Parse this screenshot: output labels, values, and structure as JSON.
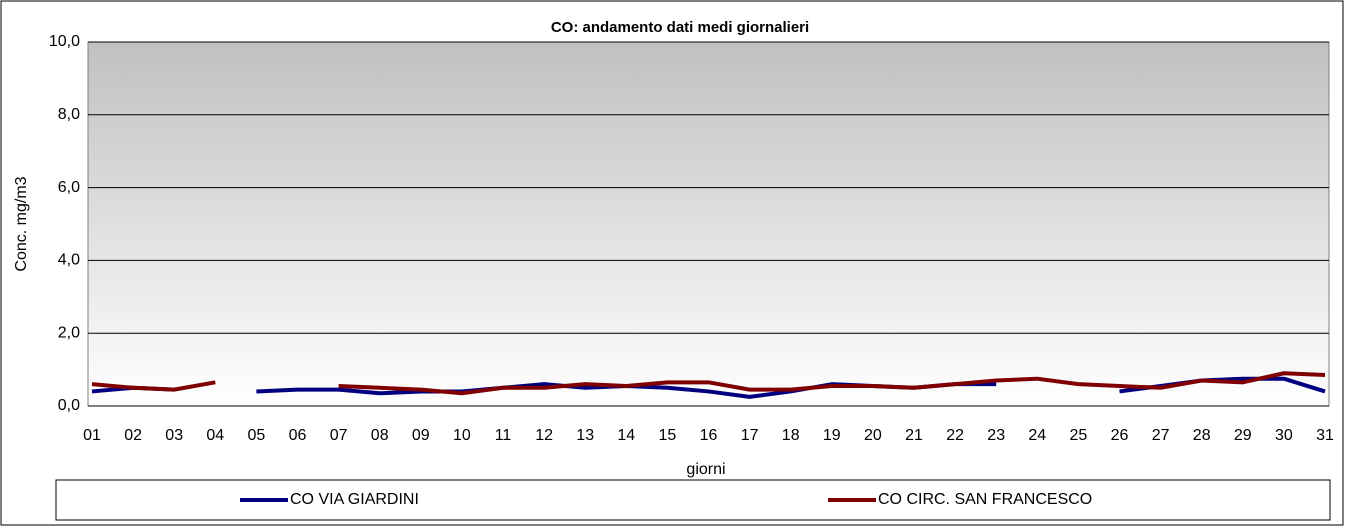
{
  "chart_data": {
    "type": "line",
    "title": "CO: andamento dati medi giornalieri",
    "xlabel": "giorni",
    "ylabel": "Conc. mg/m3",
    "categories": [
      "01",
      "02",
      "03",
      "04",
      "05",
      "06",
      "07",
      "08",
      "09",
      "10",
      "11",
      "12",
      "13",
      "14",
      "15",
      "16",
      "17",
      "18",
      "19",
      "20",
      "21",
      "22",
      "23",
      "24",
      "25",
      "26",
      "27",
      "28",
      "29",
      "30",
      "31"
    ],
    "series": [
      {
        "name": "CO VIA GIARDINI",
        "color": "#000080",
        "values": [
          0.4,
          0.5,
          0.45,
          null,
          0.4,
          0.45,
          0.45,
          0.35,
          0.4,
          0.4,
          0.5,
          0.6,
          0.5,
          0.55,
          0.5,
          0.4,
          0.25,
          0.4,
          0.6,
          0.55,
          0.5,
          0.6,
          0.6,
          null,
          null,
          0.4,
          0.55,
          0.7,
          0.75,
          0.75,
          0.4
        ]
      },
      {
        "name": "CO CIRC. SAN FRANCESCO",
        "color": "#800000",
        "values": [
          0.6,
          0.5,
          0.45,
          0.65,
          null,
          null,
          0.55,
          0.5,
          0.45,
          0.35,
          0.5,
          0.5,
          0.6,
          0.55,
          0.65,
          0.65,
          0.45,
          0.45,
          0.55,
          0.55,
          0.5,
          0.6,
          0.7,
          0.75,
          0.6,
          0.55,
          0.5,
          0.7,
          0.65,
          0.9,
          0.85
        ]
      }
    ],
    "ylim": [
      0,
      10
    ],
    "yticks": [
      {
        "value": 0,
        "label": "0,0"
      },
      {
        "value": 2,
        "label": "2,0"
      },
      {
        "value": 4,
        "label": "4,0"
      },
      {
        "value": 6,
        "label": "6,0"
      },
      {
        "value": 8,
        "label": "8,0"
      },
      {
        "value": 10,
        "label": "10,0"
      }
    ],
    "grid": true
  }
}
